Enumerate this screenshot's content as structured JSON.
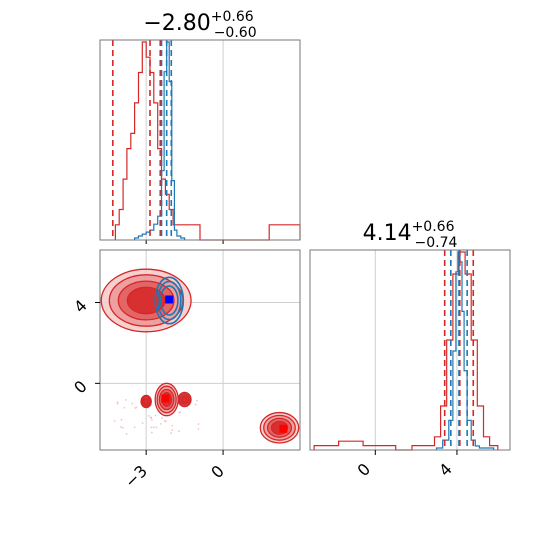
{
  "chart_data": [
    {
      "type": "histogram",
      "panel": "marginal-x",
      "title": {
        "value": "−2.80",
        "sup": "+0.66",
        "sub": "−0.60"
      },
      "xlim": [
        -4.8,
        3.0
      ],
      "xticks": [
        -3,
        0
      ],
      "grid": true,
      "series": [
        {
          "color": "#d62728",
          "bin_edges": [
            -4.2,
            -4.05,
            -3.9,
            -3.75,
            -3.6,
            -3.45,
            -3.3,
            -3.15,
            -3.0,
            -2.85,
            -2.7,
            -2.55,
            -2.4,
            -2.25,
            -2.1,
            -1.95,
            -1.8,
            -1.65,
            -1.5,
            -1.2,
            -0.9,
            -0.6,
            -0.3,
            0.0,
            0.3,
            0.6,
            0.9,
            1.2,
            1.5,
            1.8,
            2.1,
            2.4,
            2.7,
            3.0
          ],
          "counts": [
            1,
            2,
            4,
            6,
            7,
            9,
            11,
            13,
            12,
            11,
            9,
            6,
            4,
            3,
            2,
            1,
            1,
            1,
            1,
            1,
            0,
            0,
            0,
            0,
            0,
            0,
            0,
            0,
            0,
            1,
            1,
            1,
            1
          ],
          "quantiles": [
            -4.3,
            -2.85,
            -2.45
          ]
        },
        {
          "color": "#1f77b4",
          "bin_edges": [
            -3.45,
            -3.3,
            -3.15,
            -3.0,
            -2.85,
            -2.7,
            -2.55,
            -2.4,
            -2.3,
            -2.2,
            -2.1,
            -2.0,
            -1.9,
            -1.8,
            -1.65,
            -1.5
          ],
          "counts": [
            1,
            2,
            3,
            4,
            5,
            8,
            12,
            35,
            85,
            100,
            80,
            30,
            5,
            2,
            1
          ],
          "quantiles": [
            -2.4,
            -2.2,
            -2.02
          ]
        }
      ]
    },
    {
      "type": "histogram",
      "panel": "marginal-y",
      "title": {
        "value": "4.14",
        "sup": "+0.66",
        "sub": "−0.74"
      },
      "xlim": [
        -3.2,
        6.6
      ],
      "xticks": [
        0,
        4
      ],
      "grid": true,
      "series": [
        {
          "color": "#d62728",
          "bin_edges": [
            -3.0,
            -2.6,
            -2.2,
            -1.8,
            -1.4,
            -1.0,
            -0.6,
            -0.2,
            0.2,
            0.6,
            1.0,
            1.4,
            1.8,
            2.2,
            2.6,
            2.9,
            3.2,
            3.5,
            3.8,
            4.1,
            4.4,
            4.7,
            5.0,
            5.3,
            5.6,
            6.0
          ],
          "counts": [
            1,
            1,
            1,
            2,
            2,
            2,
            1,
            1,
            1,
            1,
            0,
            0,
            1,
            1,
            1,
            3,
            10,
            25,
            40,
            45,
            40,
            25,
            10,
            3,
            1
          ],
          "quantiles": [
            3.4,
            4.14,
            4.8
          ]
        },
        {
          "color": "#1f77b4",
          "bin_edges": [
            3.0,
            3.3,
            3.6,
            3.8,
            3.95,
            4.05,
            4.15,
            4.25,
            4.35,
            4.5,
            4.7,
            4.9,
            5.1,
            5.4,
            5.8
          ],
          "counts": [
            1,
            5,
            15,
            50,
            90,
            100,
            95,
            70,
            40,
            15,
            5,
            2,
            1,
            1
          ],
          "quantiles": [
            3.7,
            4.1,
            4.5
          ]
        }
      ]
    },
    {
      "type": "contour",
      "panel": "joint",
      "xlim": [
        -4.8,
        3.0
      ],
      "ylim": [
        -3.3,
        6.6
      ],
      "xticks": [
        -3,
        0
      ],
      "yticks": [
        0,
        4
      ],
      "grid": true,
      "series": [
        {
          "color": "#d62728",
          "blobs": [
            {
              "cx": -3.0,
              "cy": 4.1,
              "rx": 1.75,
              "ry": 1.55
            },
            {
              "cx": -2.2,
              "cy": -0.8,
              "rx": 0.45,
              "ry": 0.8
            },
            {
              "cx": -1.5,
              "cy": -0.8,
              "rx": 0.25,
              "ry": 0.35
            },
            {
              "cx": -3.0,
              "cy": -0.9,
              "rx": 0.2,
              "ry": 0.3
            },
            {
              "cx": 2.2,
              "cy": -2.2,
              "rx": 0.75,
              "ry": 0.75
            }
          ],
          "peaks": [
            [
              -2.25,
              -0.75
            ],
            [
              2.35,
              -2.25
            ]
          ]
        },
        {
          "color": "#1f77b4",
          "blobs": [
            {
              "cx": -2.1,
              "cy": 4.1,
              "rx": 0.55,
              "ry": 1.15
            }
          ],
          "peaks": [
            [
              -2.1,
              4.15
            ]
          ]
        }
      ]
    }
  ]
}
